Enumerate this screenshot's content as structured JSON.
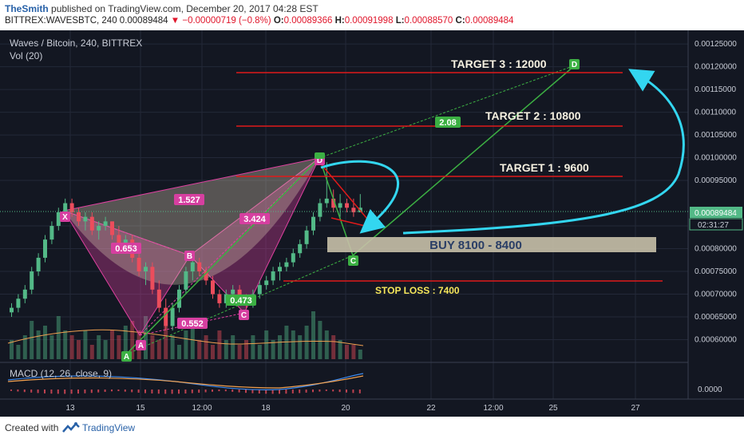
{
  "header": {
    "author": "TheSmith",
    "published": "published on TradingView.com, December 20, 2017 04:28 EST",
    "symbol": "BITTREX:WAVESBTC, 240",
    "price": "0.00089484",
    "change": "−0.00000719 (−0.8%)",
    "o_label": "O:",
    "o_value": "0.00089366",
    "h_label": "H:",
    "h_value": "0.00091998",
    "l_label": "L:",
    "l_value": "0.00088570",
    "c_label": "C:",
    "c_value": "0.00089484"
  },
  "legend": {
    "main": "Waves / Bitcoin, 240, BITTREX",
    "vol": "Vol (20)",
    "macd": "MACD (12, 26, close, 9)"
  },
  "price_axis": {
    "labels": [
      "0.00125000",
      "0.00120000",
      "0.00115000",
      "0.00110000",
      "0.00105000",
      "0.00100000",
      "0.00095000",
      "0.00089484",
      "0.00085000",
      "0.00080000",
      "0.00075000",
      "0.00070000",
      "0.00065000",
      "0.00060000"
    ],
    "current": "0.00089484",
    "countdown": "02:31:27",
    "macd_zero": "0.0000"
  },
  "time_axis": [
    "13",
    "15",
    "12:00",
    "18",
    "20",
    "22",
    "12:00",
    "25",
    "27"
  ],
  "annotations": {
    "target3": "TARGET 3 : 12000",
    "target2": "TARGET 2 : 10800",
    "target1": "TARGET 1 : 9600",
    "buy": "BUY 8100 - 8400",
    "stop": "STOP LOSS : 7400",
    "ratio_1527": "1.527",
    "ratio_0653": "0.653",
    "ratio_3424": "3.424",
    "ratio_0552": "0.552",
    "ratio_0473": "0.473",
    "ratio_208": "2.08",
    "pt_x": "X",
    "pt_a": "A",
    "pt_b": "B",
    "pt_c": "C",
    "pt_d": "D",
    "pt_a2": "A",
    "pt_c2": "C",
    "pt_d2": "D",
    "pt_d3": "D"
  },
  "colors": {
    "bg": "#131722",
    "up": "#53b987",
    "down": "#eb4d5c",
    "target_line": "#e01a1a",
    "pattern": "#e040a0",
    "green_pattern": "#3cb043",
    "arrow": "#33d6f0",
    "buy_zone": "#c8c0a8",
    "stop_text": "#f5e65a"
  },
  "footer": {
    "created": "Created with",
    "brand": "TradingView"
  },
  "chart_data": {
    "type": "candlestick",
    "symbol": "WAVESBTC",
    "timeframe": "240",
    "y_range": [
      0.00055,
      0.00128
    ],
    "levels": {
      "target_3": 0.0012,
      "target_2": 0.00108,
      "target_1": 0.00096,
      "buy_zone": [
        0.00081,
        0.00084
      ],
      "stop_loss": 0.00074,
      "current": 0.00089484
    },
    "candles": [
      [
        0.00066,
        0.00068,
        0.00065,
        0.00067
      ],
      [
        0.00067,
        0.0007,
        0.00066,
        0.00069
      ],
      [
        0.00069,
        0.00072,
        0.00068,
        0.00071
      ],
      [
        0.00071,
        0.00076,
        0.0007,
        0.00075
      ],
      [
        0.00075,
        0.00079,
        0.00074,
        0.00078
      ],
      [
        0.00078,
        0.00083,
        0.00077,
        0.00082
      ],
      [
        0.00082,
        0.00086,
        0.00081,
        0.00085
      ],
      [
        0.00085,
        0.00089,
        0.00084,
        0.00088
      ],
      [
        0.00088,
        0.00091,
        0.00087,
        0.0009
      ],
      [
        0.0009,
        0.00091,
        0.00087,
        0.00088
      ],
      [
        0.00088,
        0.00089,
        0.00085,
        0.00086
      ],
      [
        0.00086,
        0.00088,
        0.00084,
        0.00087
      ],
      [
        0.00087,
        0.00088,
        0.00083,
        0.00084
      ],
      [
        0.00084,
        0.00086,
        0.00082,
        0.00085
      ],
      [
        0.00085,
        0.00087,
        0.00084,
        0.00086
      ],
      [
        0.00086,
        0.00086,
        0.00082,
        0.00083
      ],
      [
        0.00083,
        0.00085,
        0.0008,
        0.00081
      ],
      [
        0.00081,
        0.00083,
        0.00079,
        0.00082
      ],
      [
        0.00082,
        0.00083,
        0.00077,
        0.00078
      ],
      [
        0.00078,
        0.0008,
        0.00074,
        0.00075
      ],
      [
        0.00075,
        0.00077,
        0.00072,
        0.00076
      ],
      [
        0.00076,
        0.00077,
        0.0007,
        0.00071
      ],
      [
        0.00071,
        0.00073,
        0.00066,
        0.00067
      ],
      [
        0.00067,
        0.00069,
        0.00062,
        0.00063
      ],
      [
        0.00063,
        0.00068,
        0.00062,
        0.00067
      ],
      [
        0.00067,
        0.00072,
        0.00066,
        0.00071
      ],
      [
        0.00071,
        0.00076,
        0.0007,
        0.00075
      ],
      [
        0.00075,
        0.00078,
        0.00073,
        0.00077
      ],
      [
        0.00077,
        0.00078,
        0.00074,
        0.00075
      ],
      [
        0.00075,
        0.00076,
        0.00072,
        0.00073
      ],
      [
        0.00073,
        0.00074,
        0.00069,
        0.0007
      ],
      [
        0.0007,
        0.00071,
        0.00067,
        0.00068
      ],
      [
        0.00068,
        0.00071,
        0.00067,
        0.0007
      ],
      [
        0.0007,
        0.00072,
        0.00068,
        0.00071
      ],
      [
        0.00071,
        0.00072,
        0.00068,
        0.00069
      ],
      [
        0.00069,
        0.0007,
        0.00067,
        0.00068
      ],
      [
        0.00068,
        0.00071,
        0.00067,
        0.0007
      ],
      [
        0.0007,
        0.00073,
        0.00069,
        0.00072
      ],
      [
        0.00072,
        0.00074,
        0.00071,
        0.00073
      ],
      [
        0.00073,
        0.00076,
        0.00072,
        0.00075
      ],
      [
        0.00075,
        0.00077,
        0.00073,
        0.00076
      ],
      [
        0.00076,
        0.00078,
        0.00075,
        0.00077
      ],
      [
        0.00077,
        0.0008,
        0.00076,
        0.00079
      ],
      [
        0.00079,
        0.00082,
        0.00078,
        0.00081
      ],
      [
        0.00081,
        0.00085,
        0.0008,
        0.00084
      ],
      [
        0.00084,
        0.00088,
        0.00083,
        0.00087
      ],
      [
        0.00087,
        0.00091,
        0.00086,
        0.0009
      ],
      [
        0.0009,
        0.00099,
        0.00089,
        0.00091
      ],
      [
        0.00091,
        0.00093,
        0.00088,
        0.00089
      ],
      [
        0.00089,
        0.00092,
        0.00087,
        0.0009
      ],
      [
        0.0009,
        0.00091,
        0.00088,
        0.00089
      ],
      [
        0.00089,
        0.00091,
        0.00087,
        0.00088
      ],
      [
        0.00088,
        0.00092,
        0.00088,
        0.00089
      ]
    ],
    "volume": [
      0.4,
      0.3,
      0.5,
      0.8,
      0.6,
      0.7,
      0.5,
      0.9,
      0.6,
      0.5,
      0.4,
      0.6,
      0.3,
      0.5,
      0.4,
      0.6,
      0.5,
      0.7,
      0.8,
      0.6,
      0.9,
      0.5,
      0.4,
      0.7,
      0.5,
      0.3,
      0.6,
      0.8,
      0.4,
      0.5,
      0.3,
      0.6,
      0.4,
      0.5,
      0.3,
      0.4,
      0.5,
      0.3,
      0.6,
      0.4,
      0.5,
      0.7,
      0.6,
      0.5,
      0.7,
      1.0,
      0.8,
      0.6,
      0.5,
      0.4,
      0.3,
      0.3,
      0.2
    ]
  }
}
